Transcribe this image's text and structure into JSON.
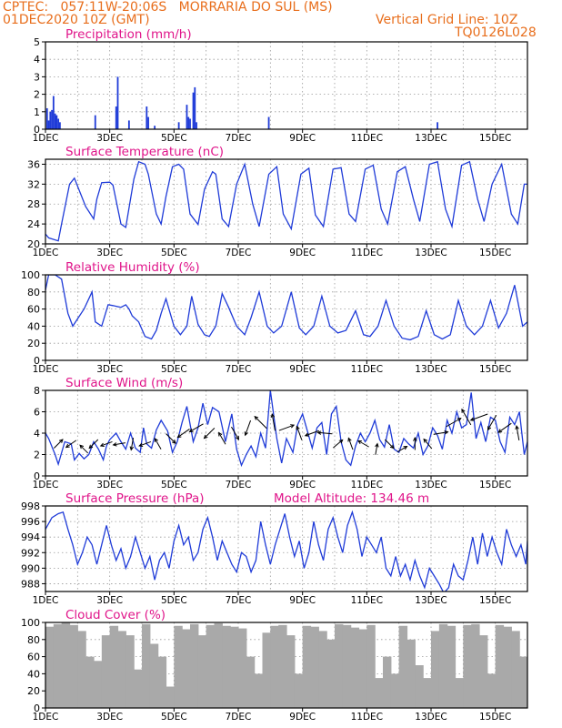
{
  "header": {
    "line1": "CPTEC:   057:11W-20:06S   MORRARIA DO SUL (MS)",
    "line2": "01DEC2020 10Z (GMT)",
    "grid_note": "Vertical Grid Line: 10Z",
    "code": "TQ0126L028"
  },
  "colors": {
    "header": "#e86e1c",
    "title": "#e0158a",
    "line": "#1f3bd8",
    "bar": "#1f3bd8",
    "cloud": "#a9a9a9",
    "arrow": "#000000"
  },
  "x_axis": {
    "labels": [
      "1DEC",
      "3DEC",
      "5DEC",
      "7DEC",
      "9DEC",
      "11DEC",
      "13DEC",
      "15DEC"
    ],
    "range_days": [
      0,
      15
    ]
  },
  "chart_data": [
    {
      "type": "bar",
      "title": "Precipitation (mm/h)",
      "ylim": [
        0,
        5
      ],
      "yticks": [
        0,
        1,
        2,
        3,
        4,
        5
      ],
      "x": [
        0.05,
        0.1,
        0.15,
        0.2,
        0.25,
        0.3,
        0.35,
        0.4,
        0.45,
        1.55,
        2.2,
        2.25,
        2.6,
        3.15,
        3.2,
        3.4,
        4.15,
        4.4,
        4.45,
        4.5,
        4.6,
        4.65,
        4.7,
        6.95,
        12.2
      ],
      "values": [
        1.2,
        0.5,
        1.0,
        1.1,
        1.9,
        0.9,
        0.8,
        0.6,
        0.4,
        0.8,
        1.3,
        3.0,
        0.5,
        1.3,
        0.7,
        0.2,
        0.4,
        1.4,
        0.7,
        0.6,
        2.1,
        2.4,
        0.4,
        0.7,
        0.4
      ]
    },
    {
      "type": "line",
      "title": "Surface Temperature (nC)",
      "ylim": [
        20,
        37
      ],
      "yticks": [
        20,
        24,
        28,
        32,
        36
      ],
      "x": [
        0,
        0.1,
        0.4,
        0.5,
        0.75,
        0.9,
        1.25,
        1.5,
        1.6,
        1.75,
        2,
        2.1,
        2.35,
        2.5,
        2.75,
        2.9,
        3.1,
        3.2,
        3.45,
        3.6,
        3.75,
        3.95,
        4.15,
        4.3,
        4.5,
        4.75,
        4.95,
        5.2,
        5.3,
        5.5,
        5.7,
        5.95,
        6.2,
        6.45,
        6.65,
        6.95,
        7.2,
        7.4,
        7.65,
        7.95,
        8.2,
        8.4,
        8.65,
        8.95,
        9.2,
        9.45,
        9.65,
        9.95,
        10.2,
        10.45,
        10.65,
        10.95,
        11.2,
        11.45,
        11.65,
        11.95,
        12.2,
        12.45,
        12.65,
        12.95,
        13.2,
        13.45,
        13.65,
        13.9,
        14.2,
        14.5,
        14.7,
        14.9,
        15
      ],
      "values": [
        22,
        21.2,
        20.6,
        24,
        32,
        33.2,
        27.5,
        25,
        29,
        32.3,
        32.4,
        31.8,
        24,
        23.3,
        33,
        36.5,
        36,
        34,
        26,
        24,
        29.5,
        35.5,
        36,
        35,
        26,
        23.9,
        31,
        34.5,
        34,
        25,
        23.5,
        32,
        36,
        28,
        23.5,
        34,
        35.5,
        26,
        23,
        34,
        35.2,
        25.8,
        23.5,
        35,
        35.3,
        26,
        24.5,
        35,
        35.8,
        27,
        24,
        34.5,
        35.5,
        29,
        24.5,
        36,
        36.5,
        27,
        23.5,
        35.8,
        36.5,
        29,
        24.5,
        32,
        36,
        26,
        24,
        32,
        32
      ]
    },
    {
      "type": "line",
      "title": "Relative Humidity (%)",
      "ylim": [
        0,
        100
      ],
      "yticks": [
        0,
        20,
        40,
        60,
        80,
        100
      ],
      "x": [
        0,
        0.1,
        0.3,
        0.5,
        0.7,
        0.85,
        1.2,
        1.45,
        1.55,
        1.75,
        1.95,
        2.1,
        2.35,
        2.5,
        2.6,
        2.7,
        2.9,
        3.1,
        3.3,
        3.45,
        3.6,
        3.75,
        4,
        4.2,
        4.4,
        4.55,
        4.75,
        4.95,
        5.1,
        5.3,
        5.5,
        5.7,
        5.95,
        6.2,
        6.4,
        6.65,
        6.9,
        7.1,
        7.35,
        7.65,
        7.9,
        8.1,
        8.35,
        8.6,
        8.85,
        9.1,
        9.35,
        9.65,
        9.9,
        10.1,
        10.35,
        10.6,
        10.85,
        11.1,
        11.35,
        11.6,
        11.85,
        12.1,
        12.35,
        12.6,
        12.85,
        13.1,
        13.35,
        13.6,
        13.85,
        14.1,
        14.35,
        14.6,
        14.85,
        15
      ],
      "values": [
        82,
        100,
        100,
        95,
        55,
        40,
        60,
        80,
        45,
        40,
        65,
        64,
        62,
        65,
        60,
        52,
        45,
        28,
        25,
        35,
        55,
        72,
        40,
        30,
        40,
        75,
        42,
        30,
        28,
        40,
        78,
        62,
        40,
        30,
        50,
        80,
        40,
        32,
        40,
        80,
        38,
        30,
        40,
        75,
        40,
        32,
        35,
        58,
        30,
        28,
        40,
        70,
        40,
        26,
        24,
        28,
        58,
        30,
        25,
        30,
        70,
        40,
        30,
        40,
        70,
        38,
        55,
        88,
        40,
        45
      ]
    },
    {
      "type": "line",
      "title": "Surface Wind (m/s)",
      "ylim": [
        0,
        8
      ],
      "yticks": [
        0,
        2,
        4,
        6,
        8
      ],
      "x": [
        0,
        0.1,
        0.3,
        0.4,
        0.6,
        0.8,
        0.9,
        1.05,
        1.2,
        1.35,
        1.5,
        1.65,
        1.8,
        1.9,
        2,
        2.2,
        2.35,
        2.5,
        2.65,
        2.8,
        2.95,
        3.05,
        3.15,
        3.3,
        3.45,
        3.6,
        3.8,
        3.95,
        4.1,
        4.25,
        4.4,
        4.6,
        4.75,
        4.9,
        5.05,
        5.2,
        5.4,
        5.6,
        5.8,
        5.95,
        6.1,
        6.25,
        6.4,
        6.55,
        6.7,
        6.85,
        7,
        7.2,
        7.35,
        7.5,
        7.7,
        7.85,
        8,
        8.15,
        8.3,
        8.45,
        8.6,
        8.75,
        8.9,
        9.05,
        9.2,
        9.35,
        9.5,
        9.65,
        9.8,
        9.95,
        10.1,
        10.25,
        10.4,
        10.55,
        10.7,
        10.85,
        11,
        11.15,
        11.3,
        11.45,
        11.6,
        11.75,
        11.9,
        12.05,
        12.2,
        12.35,
        12.5,
        12.65,
        12.8,
        12.95,
        13.1,
        13.25,
        13.4,
        13.55,
        13.7,
        13.85,
        14,
        14.15,
        14.3,
        14.45,
        14.6,
        14.75,
        14.9,
        15
      ],
      "values": [
        4,
        3.5,
        2,
        1.1,
        3.2,
        3,
        1.5,
        2.1,
        1.6,
        2,
        3.2,
        2.5,
        1.5,
        2.8,
        3.4,
        4,
        3.2,
        2.5,
        4,
        2.6,
        2.2,
        4.5,
        3,
        2.6,
        4.3,
        5.2,
        4.2,
        2.2,
        3.2,
        5,
        6.5,
        3.2,
        4.5,
        6.8,
        4.8,
        6.4,
        6,
        3.2,
        5.8,
        2.5,
        1,
        2,
        2.8,
        1.8,
        4,
        2.6,
        8,
        3.5,
        1.2,
        3.5,
        2.2,
        4.8,
        5.8,
        4.2,
        2.6,
        4.5,
        5,
        2,
        5.8,
        6.5,
        3.2,
        1.5,
        1,
        2.8,
        4,
        3.2,
        4,
        5.2,
        3.4,
        2.7,
        4.8,
        2.5,
        2.2,
        3.5,
        3,
        2.6,
        4,
        2,
        2.8,
        4.5,
        3.8,
        2.5,
        5.2,
        4,
        6,
        4.5,
        4.8,
        7.8,
        3.5,
        5,
        3.2,
        5.5,
        5.2,
        3.2,
        2.2,
        5.5,
        4.8,
        6,
        2,
        3.2
      ]
    },
    {
      "type": "line",
      "title": "Surface Pressure (hPa)",
      "ylim": [
        987,
        998
      ],
      "yticks": [
        988,
        990,
        992,
        994,
        996,
        998
      ],
      "x": [
        0,
        0.2,
        0.4,
        0.55,
        0.7,
        0.85,
        1,
        1.15,
        1.3,
        1.45,
        1.6,
        1.75,
        1.9,
        2.05,
        2.2,
        2.35,
        2.5,
        2.65,
        2.8,
        2.95,
        3.1,
        3.25,
        3.4,
        3.55,
        3.7,
        3.85,
        4,
        4.15,
        4.3,
        4.45,
        4.6,
        4.75,
        4.9,
        5.05,
        5.2,
        5.35,
        5.5,
        5.65,
        5.8,
        5.95,
        6.1,
        6.25,
        6.4,
        6.55,
        6.7,
        6.85,
        7,
        7.15,
        7.3,
        7.45,
        7.6,
        7.75,
        7.9,
        8.05,
        8.2,
        8.35,
        8.5,
        8.65,
        8.8,
        8.95,
        9.1,
        9.25,
        9.4,
        9.55,
        9.7,
        9.85,
        10,
        10.15,
        10.3,
        10.45,
        10.6,
        10.75,
        10.9,
        11.05,
        11.2,
        11.35,
        11.5,
        11.65,
        11.8,
        11.95,
        12.1,
        12.25,
        12.4,
        12.55,
        12.7,
        12.85,
        13,
        13.15,
        13.3,
        13.45,
        13.6,
        13.75,
        13.9,
        14.05,
        14.2,
        14.35,
        14.5,
        14.65,
        14.8,
        14.95,
        15
      ],
      "values": [
        995,
        996.5,
        997,
        997.2,
        995,
        993,
        990.5,
        992,
        994,
        993,
        990.5,
        993,
        995.5,
        993,
        991,
        992.5,
        990,
        991.5,
        994,
        992,
        990,
        991.5,
        988.5,
        991,
        992,
        990,
        993.5,
        995.5,
        993,
        994,
        991,
        992,
        995,
        996.5,
        994,
        991,
        993.5,
        992,
        990.5,
        989.5,
        992,
        991.5,
        989.5,
        991,
        996,
        993,
        990.5,
        993,
        995,
        997,
        994,
        991.5,
        993.5,
        990,
        992,
        996,
        993,
        991,
        995,
        996.5,
        994,
        992,
        995.5,
        997.2,
        995,
        991.5,
        994,
        993,
        992,
        994,
        990,
        989,
        991.5,
        989,
        990.5,
        988.5,
        991,
        989,
        987.5,
        990,
        989,
        988,
        986.8,
        987.5,
        990.5,
        989,
        988.5,
        991,
        994,
        990.5,
        994.5,
        991.5,
        994,
        992,
        990.5,
        995,
        993,
        991.5,
        993,
        990.5,
        993.5
      ]
    },
    {
      "type": "bar",
      "title": "Cloud Cover (%)",
      "ylim": [
        0,
        100
      ],
      "yticks": [
        0,
        20,
        40,
        60,
        80,
        100
      ],
      "x": [
        0,
        0.25,
        0.5,
        0.75,
        1,
        1.25,
        1.5,
        1.75,
        2,
        2.25,
        2.5,
        2.75,
        3,
        3.25,
        3.5,
        3.75,
        4,
        4.25,
        4.5,
        4.75,
        5,
        5.25,
        5.5,
        5.75,
        6,
        6.25,
        6.5,
        6.75,
        7,
        7.25,
        7.5,
        7.75,
        8,
        8.25,
        8.5,
        8.75,
        9,
        9.25,
        9.5,
        9.75,
        10,
        10.25,
        10.5,
        10.75,
        11,
        11.25,
        11.5,
        11.75,
        12,
        12.25,
        12.5,
        12.75,
        13,
        13.25,
        13.5,
        13.75,
        14,
        14.25,
        14.5,
        14.75,
        15
      ],
      "values": [
        95,
        98,
        100,
        97,
        90,
        60,
        55,
        85,
        96,
        90,
        85,
        45,
        98,
        75,
        60,
        25,
        96,
        92,
        98,
        85,
        97,
        99,
        96,
        95,
        93,
        60,
        40,
        88,
        96,
        97,
        85,
        40,
        96,
        95,
        90,
        80,
        98,
        97,
        94,
        92,
        97,
        35,
        60,
        40,
        96,
        80,
        50,
        35,
        90,
        98,
        96,
        35,
        97,
        98,
        85,
        40,
        97,
        95,
        90,
        60,
        95
      ]
    }
  ],
  "wind_arrows": {
    "x": [
      0.4,
      0.8,
      1.2,
      1.5,
      1.9,
      2.3,
      2.7,
      3.1,
      3.5,
      3.9,
      4.3,
      4.7,
      5.1,
      5.5,
      5.9,
      6.3,
      6.7,
      7.1,
      7.5,
      7.9,
      8.3,
      8.7,
      9.1,
      9.5,
      9.9,
      10.3,
      10.7,
      11.1,
      11.5,
      11.9,
      12.3,
      12.7,
      13.1,
      13.5,
      13.9,
      14.3,
      14.7
    ],
    "dir_deg": [
      45,
      215,
      135,
      225,
      200,
      190,
      260,
      200,
      120,
      315,
      215,
      210,
      225,
      120,
      300,
      250,
      135,
      100,
      20,
      110,
      200,
      175,
      40,
      110,
      150,
      80,
      315,
      30,
      90,
      130,
      10,
      30,
      120,
      200,
      240,
      215,
      100
    ],
    "speed": [
      3,
      3,
      2.5,
      3,
      3,
      3,
      3,
      3,
      3,
      3.5,
      4,
      4.5,
      4,
      3.5,
      4,
      4.5,
      5,
      5,
      4.5,
      4,
      4,
      4,
      3,
      3,
      3,
      2.5,
      3,
      2.5,
      3,
      3,
      4,
      5,
      5.5,
      5.5,
      5,
      4.5,
      4
    ]
  },
  "pressure_extra": {
    "label": "Model Altitude:",
    "value": "134.46 m"
  }
}
